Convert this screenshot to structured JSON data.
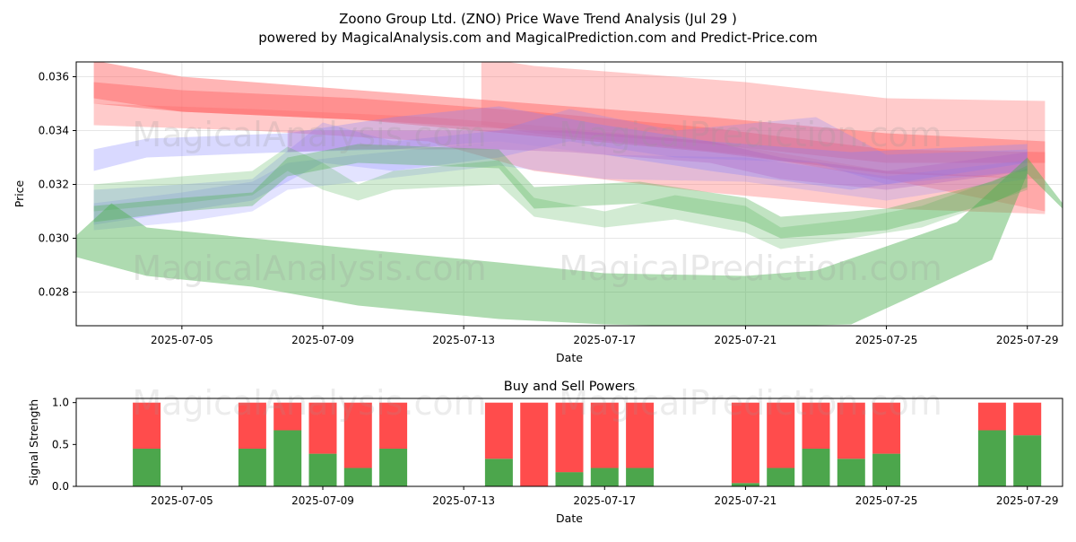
{
  "title_line1": "Zoono Group Ltd. (ZNO) Price Wave Trend Analysis (Jul 29 )",
  "title_line2": "powered by MagicalAnalysis.com and MagicalPrediction.com and Predict-Price.com",
  "watermarks": [
    "MagicalAnalysis.com",
    "MagicalPrediction.com"
  ],
  "colors": {
    "red_band": "#ff6b6b",
    "green_band": "#4caf50",
    "blue_band": "#8080ff",
    "purple_band": "#b060c0",
    "buy": "#4ca64c",
    "sell": "#ff4c4c"
  },
  "chart_data": [
    {
      "type": "area",
      "title": "",
      "xlabel": "Date",
      "ylabel": "Price",
      "x_ticks": [
        "2025-07-05",
        "2025-07-09",
        "2025-07-13",
        "2025-07-17",
        "2025-07-21",
        "2025-07-25",
        "2025-07-29"
      ],
      "y_ticks": [
        "0.028",
        "0.030",
        "0.032",
        "0.034",
        "0.036"
      ],
      "ylim": [
        0.02675,
        0.03655
      ],
      "xlim": [
        "2025-07-02",
        "2025-07-30"
      ],
      "grid": true,
      "bands": [
        {
          "color": "red",
          "opacity": 0.5,
          "upper": [
            [
              2.5,
              0.0366
            ],
            [
              5,
              0.036
            ],
            [
              10,
              0.0355
            ],
            [
              15,
              0.035
            ],
            [
              20,
              0.0345
            ],
            [
              25,
              0.0339
            ],
            [
              29.5,
              0.0336
            ]
          ],
          "lower": [
            [
              2.5,
              0.0352
            ],
            [
              5,
              0.0347
            ],
            [
              10,
              0.0344
            ],
            [
              15,
              0.0338
            ],
            [
              20,
              0.0332
            ],
            [
              25,
              0.0324
            ],
            [
              29.5,
              0.0322
            ]
          ]
        },
        {
          "color": "red",
          "opacity": 0.5,
          "upper": [
            [
              2.5,
              0.0358
            ],
            [
              5,
              0.0355
            ],
            [
              10,
              0.0352
            ],
            [
              15,
              0.0347
            ],
            [
              20,
              0.0341
            ],
            [
              25,
              0.0333
            ],
            [
              29.5,
              0.0332
            ]
          ],
          "lower": [
            [
              2.5,
              0.035
            ],
            [
              5,
              0.0347
            ],
            [
              10,
              0.0344
            ],
            [
              15,
              0.034
            ],
            [
              20,
              0.0335
            ],
            [
              25,
              0.0328
            ],
            [
              29.5,
              0.0328
            ]
          ]
        },
        {
          "color": "red",
          "opacity": 0.35,
          "upper": [
            [
              2.5,
              0.035
            ],
            [
              7,
              0.0348
            ],
            [
              12,
              0.0345
            ],
            [
              15,
              0.0342
            ],
            [
              20,
              0.0336
            ],
            [
              25,
              0.0325
            ],
            [
              29.5,
              0.0322
            ]
          ],
          "lower": [
            [
              2.5,
              0.0342
            ],
            [
              7,
              0.034
            ],
            [
              12,
              0.0336
            ],
            [
              15,
              0.0325
            ],
            [
              20,
              0.0317
            ],
            [
              25,
              0.0311
            ],
            [
              29.5,
              0.0309
            ]
          ]
        },
        {
          "color": "red",
          "opacity": 0.35,
          "upper": [
            [
              13.5,
              0.0367
            ],
            [
              15,
              0.0364
            ],
            [
              21,
              0.0358
            ],
            [
              25,
              0.0352
            ],
            [
              29.5,
              0.0351
            ]
          ],
          "lower": [
            [
              13.5,
              0.0342
            ],
            [
              15,
              0.0339
            ],
            [
              21,
              0.0331
            ],
            [
              25,
              0.0322
            ],
            [
              29.5,
              0.031
            ]
          ]
        },
        {
          "color": "blue",
          "opacity": 0.3,
          "upper": [
            [
              2.5,
              0.0333
            ],
            [
              4,
              0.0337
            ],
            [
              8,
              0.0339
            ],
            [
              11,
              0.0345
            ],
            [
              14,
              0.0349
            ],
            [
              17,
              0.0342
            ],
            [
              20,
              0.0336
            ],
            [
              24,
              0.0332
            ],
            [
              29,
              0.0335
            ]
          ],
          "lower": [
            [
              2.5,
              0.0325
            ],
            [
              4,
              0.033
            ],
            [
              8,
              0.0332
            ],
            [
              11,
              0.0333
            ],
            [
              14,
              0.0336
            ],
            [
              17,
              0.0331
            ],
            [
              20,
              0.0325
            ],
            [
              24,
              0.0318
            ],
            [
              29,
              0.0328
            ]
          ]
        },
        {
          "color": "blue",
          "opacity": 0.25,
          "upper": [
            [
              2.5,
              0.0318
            ],
            [
              5,
              0.032
            ],
            [
              7,
              0.0322
            ],
            [
              9,
              0.0343
            ],
            [
              11,
              0.0336
            ],
            [
              14,
              0.034
            ],
            [
              16,
              0.0348
            ],
            [
              19,
              0.034
            ],
            [
              23,
              0.0345
            ],
            [
              25,
              0.0331
            ],
            [
              29,
              0.0333
            ]
          ],
          "lower": [
            [
              2.5,
              0.0305
            ],
            [
              5,
              0.031
            ],
            [
              7,
              0.0314
            ],
            [
              9,
              0.0328
            ],
            [
              11,
              0.0325
            ],
            [
              14,
              0.033
            ],
            [
              16,
              0.0336
            ],
            [
              19,
              0.033
            ],
            [
              23,
              0.0328
            ],
            [
              25,
              0.032
            ],
            [
              29,
              0.0325
            ]
          ]
        },
        {
          "color": "blue",
          "opacity": 0.22,
          "upper": [
            [
              2.5,
              0.0313
            ],
            [
              5,
              0.0317
            ],
            [
              7,
              0.0321
            ],
            [
              8,
              0.0328
            ],
            [
              10,
              0.0331
            ],
            [
              14,
              0.0336
            ],
            [
              17,
              0.0331
            ],
            [
              21,
              0.033
            ],
            [
              25,
              0.0323
            ],
            [
              29,
              0.0329
            ]
          ],
          "lower": [
            [
              2.5,
              0.0303
            ],
            [
              5,
              0.0306
            ],
            [
              7,
              0.031
            ],
            [
              8,
              0.0318
            ],
            [
              10,
              0.0321
            ],
            [
              14,
              0.0327
            ],
            [
              17,
              0.0322
            ],
            [
              21,
              0.0321
            ],
            [
              25,
              0.0314
            ],
            [
              29,
              0.0322
            ]
          ]
        },
        {
          "color": "purple",
          "opacity": 0.3,
          "upper": [
            [
              8,
              0.034
            ],
            [
              10,
              0.034
            ],
            [
              14,
              0.034
            ],
            [
              16,
              0.034
            ],
            [
              20,
              0.0336
            ],
            [
              22,
              0.033
            ],
            [
              25,
              0.0325
            ],
            [
              29,
              0.0332
            ]
          ],
          "lower": [
            [
              8,
              0.0332
            ],
            [
              10,
              0.0333
            ],
            [
              14,
              0.0333
            ],
            [
              16,
              0.0332
            ],
            [
              20,
              0.0328
            ],
            [
              22,
              0.0322
            ],
            [
              25,
              0.0318
            ],
            [
              29,
              0.0325
            ]
          ]
        },
        {
          "color": "green",
          "opacity": 0.35,
          "upper": [
            [
              2.5,
              0.0312
            ],
            [
              5,
              0.0315
            ],
            [
              7,
              0.0317
            ],
            [
              8,
              0.033
            ],
            [
              10,
              0.0335
            ],
            [
              14,
              0.0333
            ],
            [
              15,
              0.0319
            ],
            [
              18,
              0.0321
            ],
            [
              21,
              0.0315
            ],
            [
              22,
              0.0308
            ],
            [
              25,
              0.0311
            ],
            [
              28,
              0.0321
            ],
            [
              29,
              0.0327
            ]
          ],
          "lower": [
            [
              2.5,
              0.0306
            ],
            [
              5,
              0.031
            ],
            [
              7,
              0.0312
            ],
            [
              8,
              0.0323
            ],
            [
              10,
              0.0328
            ],
            [
              14,
              0.0326
            ],
            [
              15,
              0.0311
            ],
            [
              18,
              0.0313
            ],
            [
              21,
              0.0306
            ],
            [
              22,
              0.03
            ],
            [
              25,
              0.0303
            ],
            [
              28,
              0.0313
            ],
            [
              29,
              0.0319
            ]
          ]
        },
        {
          "color": "green",
          "opacity": 0.25,
          "upper": [
            [
              2.5,
              0.032
            ],
            [
              5,
              0.0323
            ],
            [
              7,
              0.0325
            ],
            [
              8,
              0.0334
            ],
            [
              9,
              0.0328
            ],
            [
              10,
              0.032
            ],
            [
              11,
              0.0325
            ],
            [
              14,
              0.0329
            ],
            [
              15,
              0.0315
            ],
            [
              17,
              0.031
            ],
            [
              19,
              0.0316
            ],
            [
              21,
              0.0312
            ],
            [
              22,
              0.0304
            ],
            [
              24,
              0.0307
            ],
            [
              26,
              0.0312
            ],
            [
              29,
              0.0326
            ]
          ],
          "lower": [
            [
              2.5,
              0.031
            ],
            [
              5,
              0.0313
            ],
            [
              7,
              0.0316
            ],
            [
              8,
              0.0325
            ],
            [
              9,
              0.0318
            ],
            [
              10,
              0.0314
            ],
            [
              11,
              0.0318
            ],
            [
              14,
              0.032
            ],
            [
              15,
              0.0308
            ],
            [
              17,
              0.0304
            ],
            [
              19,
              0.0307
            ],
            [
              21,
              0.0302
            ],
            [
              22,
              0.0296
            ],
            [
              24,
              0.03
            ],
            [
              26,
              0.0304
            ],
            [
              29,
              0.0318
            ]
          ]
        },
        {
          "color": "green",
          "opacity": 0.45,
          "upper": [
            [
              2,
              0.0301
            ],
            [
              3,
              0.0313
            ],
            [
              4,
              0.0304
            ],
            [
              7,
              0.03
            ],
            [
              10,
              0.0296
            ],
            [
              14,
              0.0291
            ],
            [
              17,
              0.0287
            ],
            [
              21,
              0.0286
            ],
            [
              23,
              0.0288
            ],
            [
              25,
              0.0297
            ],
            [
              27,
              0.0306
            ],
            [
              29,
              0.033
            ],
            [
              30,
              0.0313
            ]
          ],
          "lower": [
            [
              2,
              0.0293
            ],
            [
              4,
              0.0286
            ],
            [
              7,
              0.0282
            ],
            [
              10,
              0.0275
            ],
            [
              14,
              0.027
            ],
            [
              17,
              0.0268
            ],
            [
              21,
              0.0267
            ],
            [
              24,
              0.0268
            ],
            [
              26,
              0.028
            ],
            [
              28,
              0.0292
            ],
            [
              29,
              0.0324
            ],
            [
              30,
              0.0311
            ]
          ]
        }
      ]
    },
    {
      "type": "bar",
      "title": "Buy and Sell Powers",
      "xlabel": "Date",
      "ylabel": "Signal Strength",
      "x_ticks": [
        "2025-07-05",
        "2025-07-09",
        "2025-07-13",
        "2025-07-17",
        "2025-07-21",
        "2025-07-25",
        "2025-07-29"
      ],
      "y_ticks": [
        "0.0",
        "0.5",
        "1.0"
      ],
      "ylim": [
        0,
        1.05
      ],
      "categories": [
        "2025-07-04",
        "2025-07-07",
        "2025-07-08",
        "2025-07-09",
        "2025-07-10",
        "2025-07-11",
        "2025-07-14",
        "2025-07-15",
        "2025-07-16",
        "2025-07-17",
        "2025-07-18",
        "2025-07-21",
        "2025-07-22",
        "2025-07-23",
        "2025-07-24",
        "2025-07-25",
        "2025-07-28",
        "2025-07-29"
      ],
      "series": [
        {
          "name": "Buy",
          "values": [
            0.45,
            0.45,
            0.67,
            0.39,
            0.22,
            0.45,
            0.33,
            0.0,
            0.17,
            0.22,
            0.22,
            0.04,
            0.22,
            0.45,
            0.33,
            0.39,
            0.67,
            0.61
          ]
        },
        {
          "name": "Sell",
          "values": [
            0.55,
            0.55,
            0.33,
            0.61,
            0.78,
            0.55,
            0.67,
            1.0,
            0.83,
            0.78,
            0.78,
            0.96,
            0.78,
            0.55,
            0.67,
            0.61,
            0.33,
            0.39
          ]
        }
      ]
    }
  ]
}
